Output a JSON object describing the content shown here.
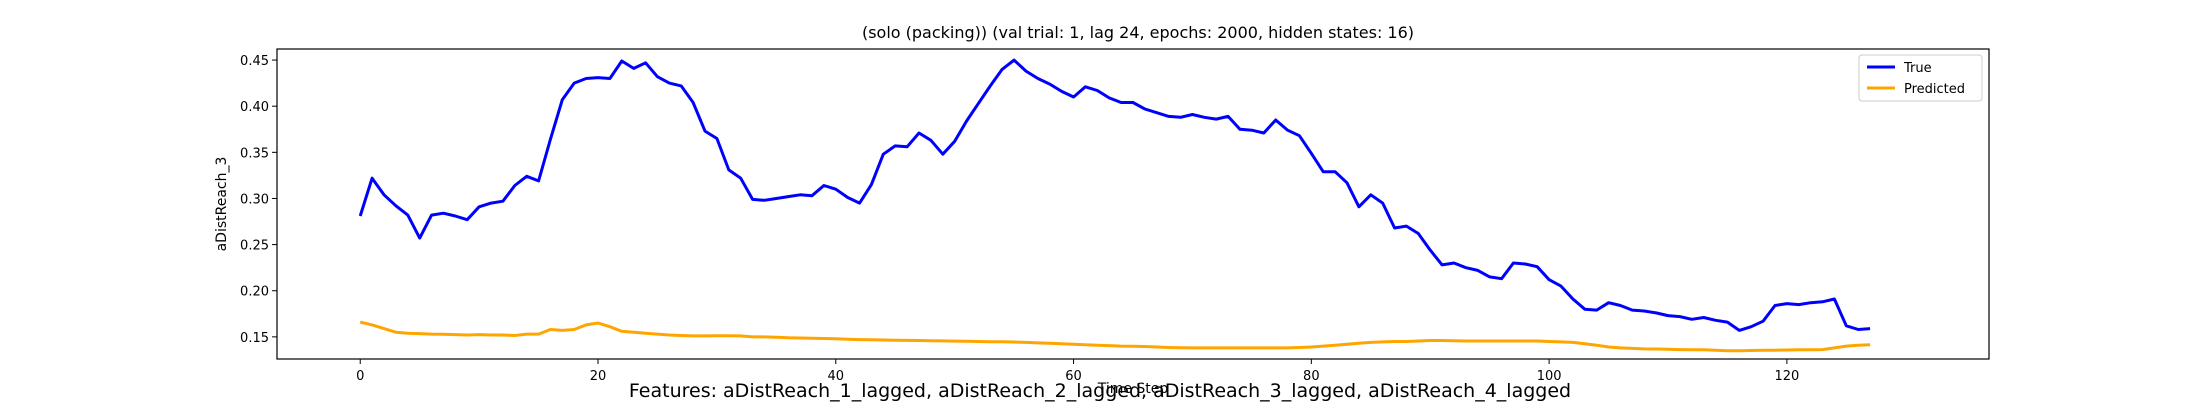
{
  "chart_data": {
    "type": "line",
    "title": "(solo (packing)) (val trial: 1, lag 24, epochs: 2000, hidden states: 16)",
    "xlabel": "Time Step",
    "ylabel": "aDistReach_3",
    "xlim": [
      -7,
      137
    ],
    "ylim": [
      0.126,
      0.462
    ],
    "xticks": [
      0,
      20,
      40,
      60,
      80,
      100,
      120
    ],
    "yticks": [
      0.15,
      0.2,
      0.25,
      0.3,
      0.35,
      0.4,
      0.45
    ],
    "ytick_labels": [
      "0.15",
      "0.20",
      "0.25",
      "0.30",
      "0.35",
      "0.40",
      "0.45"
    ],
    "grid": false,
    "legend_position": "top-right",
    "series": [
      {
        "name": "True",
        "color": "#0000ff",
        "x": [
          0,
          1,
          2,
          3,
          4,
          5,
          6,
          7,
          8,
          9,
          10,
          11,
          12,
          13,
          14,
          15,
          16,
          17,
          18,
          19,
          20,
          21,
          22,
          23,
          24,
          25,
          26,
          27,
          28,
          29,
          30,
          31,
          32,
          33,
          34,
          35,
          36,
          37,
          38,
          39,
          40,
          41,
          42,
          43,
          44,
          45,
          46,
          47,
          48,
          49,
          50,
          51,
          52,
          53,
          54,
          55,
          56,
          57,
          58,
          59,
          60,
          61,
          62,
          63,
          64,
          65,
          66,
          67,
          68,
          69,
          70,
          71,
          72,
          73,
          74,
          75,
          76,
          77,
          78,
          79,
          80,
          81,
          82,
          83,
          84,
          85,
          86,
          87,
          88,
          89,
          90,
          91,
          92,
          93,
          94,
          95,
          96,
          97,
          98,
          99,
          100,
          101,
          102,
          103,
          104,
          105,
          106,
          107,
          108,
          109,
          110,
          111,
          112,
          113,
          114,
          115,
          116,
          117,
          118,
          119,
          120,
          121,
          122,
          123,
          124,
          125,
          126,
          127
        ],
        "values": [
          0.281,
          0.322,
          0.304,
          0.292,
          0.282,
          0.257,
          0.282,
          0.284,
          0.281,
          0.277,
          0.291,
          0.295,
          0.297,
          0.314,
          0.324,
          0.319,
          0.364,
          0.407,
          0.425,
          0.43,
          0.431,
          0.43,
          0.449,
          0.441,
          0.447,
          0.432,
          0.425,
          0.422,
          0.404,
          0.373,
          0.365,
          0.331,
          0.322,
          0.299,
          0.298,
          0.3,
          0.302,
          0.304,
          0.303,
          0.314,
          0.31,
          0.301,
          0.295,
          0.315,
          0.348,
          0.357,
          0.356,
          0.371,
          0.363,
          0.348,
          0.362,
          0.384,
          0.403,
          0.422,
          0.44,
          0.45,
          0.438,
          0.43,
          0.424,
          0.416,
          0.41,
          0.421,
          0.417,
          0.409,
          0.404,
          0.404,
          0.397,
          0.393,
          0.389,
          0.388,
          0.391,
          0.388,
          0.386,
          0.389,
          0.375,
          0.374,
          0.371,
          0.385,
          0.374,
          0.368,
          0.349,
          0.329,
          0.329,
          0.317,
          0.291,
          0.304,
          0.295,
          0.268,
          0.27,
          0.262,
          0.244,
          0.228,
          0.23,
          0.225,
          0.222,
          0.215,
          0.213,
          0.23,
          0.229,
          0.226,
          0.212,
          0.205,
          0.191,
          0.18,
          0.179,
          0.187,
          0.184,
          0.179,
          0.178,
          0.176,
          0.173,
          0.172,
          0.169,
          0.171,
          0.168,
          0.166,
          0.157,
          0.161,
          0.167,
          0.184,
          0.186,
          0.185,
          0.187,
          0.188,
          0.191,
          0.162,
          0.158,
          0.159
        ]
      },
      {
        "name": "Predicted",
        "color": "#ffa500",
        "x": [
          0,
          1,
          2,
          3,
          4,
          5,
          6,
          7,
          8,
          9,
          10,
          11,
          12,
          13,
          14,
          15,
          16,
          17,
          18,
          19,
          20,
          21,
          22,
          23,
          24,
          25,
          26,
          27,
          28,
          29,
          30,
          31,
          32,
          33,
          34,
          35,
          36,
          37,
          38,
          39,
          40,
          41,
          42,
          43,
          44,
          45,
          46,
          47,
          48,
          49,
          50,
          51,
          52,
          53,
          54,
          55,
          56,
          57,
          58,
          59,
          60,
          61,
          62,
          63,
          64,
          65,
          66,
          67,
          68,
          69,
          70,
          71,
          72,
          73,
          74,
          75,
          76,
          77,
          78,
          79,
          80,
          81,
          82,
          83,
          84,
          85,
          86,
          87,
          88,
          89,
          90,
          91,
          92,
          93,
          94,
          95,
          96,
          97,
          98,
          99,
          100,
          101,
          102,
          103,
          104,
          105,
          106,
          107,
          108,
          109,
          110,
          111,
          112,
          113,
          114,
          115,
          116,
          117,
          118,
          119,
          120,
          121,
          122,
          123,
          124,
          125,
          126,
          127
        ],
        "values": [
          0.166,
          0.163,
          0.159,
          0.155,
          0.154,
          0.1535,
          0.153,
          0.1528,
          0.1525,
          0.152,
          0.1525,
          0.152,
          0.152,
          0.1515,
          0.153,
          0.153,
          0.158,
          0.157,
          0.158,
          0.163,
          0.165,
          0.161,
          0.156,
          0.155,
          0.154,
          0.153,
          0.152,
          0.1515,
          0.151,
          0.151,
          0.1512,
          0.1512,
          0.151,
          0.15,
          0.15,
          0.1495,
          0.149,
          0.1488,
          0.1485,
          0.1482,
          0.148,
          0.1475,
          0.147,
          0.1468,
          0.1466,
          0.1464,
          0.1462,
          0.146,
          0.1458,
          0.1456,
          0.1454,
          0.1452,
          0.145,
          0.1448,
          0.1446,
          0.1444,
          0.144,
          0.1435,
          0.143,
          0.1425,
          0.142,
          0.1415,
          0.141,
          0.1405,
          0.14,
          0.1398,
          0.1395,
          0.139,
          0.1385,
          0.1382,
          0.138,
          0.138,
          0.138,
          0.138,
          0.138,
          0.138,
          0.138,
          0.138,
          0.138,
          0.1385,
          0.139,
          0.14,
          0.141,
          0.142,
          0.143,
          0.144,
          0.1445,
          0.145,
          0.145,
          0.1455,
          0.146,
          0.146,
          0.1458,
          0.1455,
          0.1455,
          0.1455,
          0.1455,
          0.1455,
          0.1455,
          0.1455,
          0.145,
          0.1445,
          0.144,
          0.1425,
          0.141,
          0.139,
          0.138,
          0.1375,
          0.137,
          0.1368,
          0.1365,
          0.1362,
          0.136,
          0.136,
          0.1355,
          0.135,
          0.135,
          0.1352,
          0.1355,
          0.1355,
          0.1358,
          0.136,
          0.136,
          0.1362,
          0.138,
          0.14,
          0.141,
          0.1415
        ]
      }
    ]
  },
  "caption": "Features: aDistReach_1_lagged, aDistReach_2_lagged, aDistReach_3_lagged, aDistReach_4_lagged"
}
